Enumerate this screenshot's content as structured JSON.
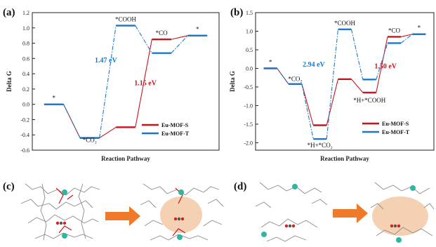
{
  "panels": {
    "a": "(a)",
    "b": "(b)",
    "c": "(c)",
    "d": "(d)"
  },
  "colors": {
    "eu_mof_s": "#c8141e",
    "eu_mof_t": "#1e78c8",
    "arrow": "#ee7a2a",
    "pore": "#f3c9a6"
  },
  "chart_data": [
    {
      "type": "line",
      "panel": "(a)",
      "style": "free-energy step diagram",
      "xlabel": "Reaction Pathway",
      "ylabel": "Delta G",
      "ylim": [
        -0.6,
        1.2
      ],
      "yticks": [
        "-0.6",
        "-0.4",
        "-0.2",
        "0.0",
        "0.2",
        "0.4",
        "0.6",
        "0.8",
        "1.0",
        "1.2"
      ],
      "x": [
        1,
        2,
        3,
        4,
        5
      ],
      "series": [
        {
          "name": "Eu-MOF-S",
          "values": [
            0.0,
            -0.44,
            -0.3,
            0.85,
            0.9
          ]
        },
        {
          "name": "Eu-MOF-T",
          "values": [
            0.0,
            -0.44,
            1.03,
            0.67,
            0.9
          ]
        }
      ],
      "state_labels": [
        "*",
        "*CO₂",
        "*COOH",
        "*CO",
        "*"
      ],
      "annotations": [
        {
          "text": "1.47 eV",
          "series": "Eu-MOF-T"
        },
        {
          "text": "1.15 eV",
          "series": "Eu-MOF-S"
        }
      ],
      "legend": "bottom-right"
    },
    {
      "type": "line",
      "panel": "(b)",
      "style": "free-energy step diagram",
      "xlabel": "Reaction Pathway",
      "ylabel": "Delta G",
      "ylim": [
        -2.2,
        1.5
      ],
      "yticks": [
        "-2.0",
        "-1.5",
        "-1.0",
        "-0.5",
        "0.0",
        "0.5",
        "1.0",
        "1.5"
      ],
      "x": [
        1,
        2,
        3,
        4,
        5,
        6,
        7
      ],
      "series": [
        {
          "name": "Eu-MOF-S",
          "values": [
            0.0,
            -0.42,
            -1.53,
            -0.29,
            -0.65,
            0.85,
            0.92
          ]
        },
        {
          "name": "Eu-MOF-T",
          "values": [
            0.0,
            -0.42,
            -1.9,
            1.05,
            -0.3,
            0.68,
            0.92
          ]
        }
      ],
      "state_labels": [
        "*",
        "*CO₂",
        "*H+*CO₂",
        "*COOH",
        "*H+*COOH",
        "*CO",
        "*"
      ],
      "annotations": [
        {
          "text": "2.94 eV",
          "series": "Eu-MOF-T"
        },
        {
          "text": "1.50 eV",
          "series": "Eu-MOF-S"
        }
      ],
      "legend": "bottom-right"
    }
  ]
}
